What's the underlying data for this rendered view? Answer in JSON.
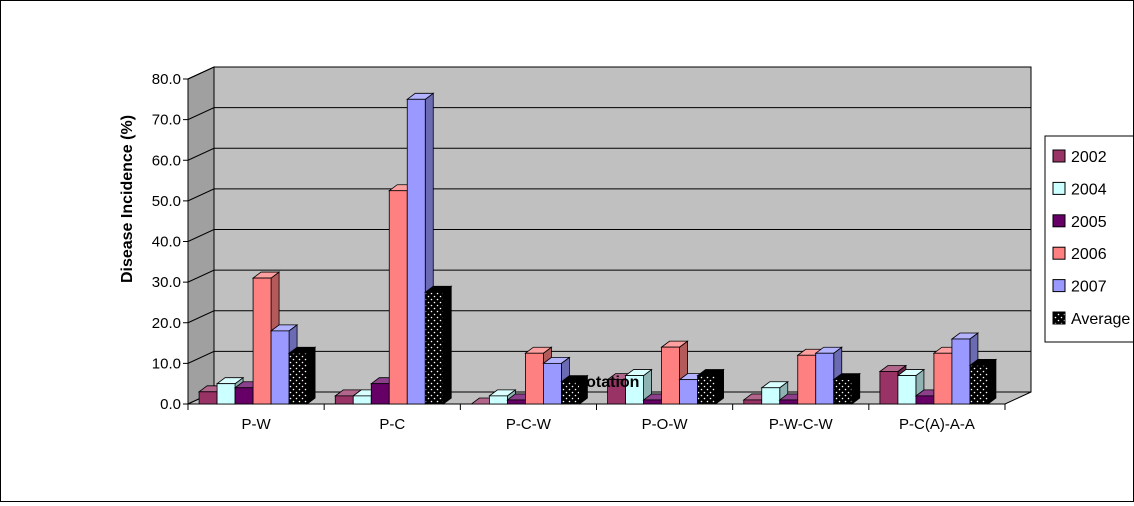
{
  "chart_data": {
    "type": "bar",
    "title": "",
    "xlabel": "Rotation",
    "ylabel": "Disease Incidence (%)",
    "ylim": [
      0,
      80
    ],
    "yticks": [
      "0.0",
      "10.0",
      "20.0",
      "30.0",
      "40.0",
      "50.0",
      "60.0",
      "70.0",
      "80.0"
    ],
    "categories": [
      "P-W",
      "P-C",
      "P-C-W",
      "P-O-W",
      "P-W-C-W",
      "P-C(A)-A-A"
    ],
    "grid": true,
    "legend_position": "right",
    "series": [
      {
        "name": "2002",
        "color": "#993366",
        "values": [
          3.0,
          2.0,
          0.0,
          6.0,
          1.0,
          8.0
        ]
      },
      {
        "name": "2004",
        "color": "#ccffff",
        "values": [
          5.0,
          2.0,
          2.0,
          7.0,
          4.0,
          7.0
        ]
      },
      {
        "name": "2005",
        "color": "#660066",
        "values": [
          4.0,
          5.0,
          1.0,
          1.0,
          1.0,
          2.0
        ]
      },
      {
        "name": "2006",
        "color": "#ff8080",
        "values": [
          31.0,
          52.5,
          12.5,
          14.0,
          12.0,
          12.5
        ]
      },
      {
        "name": "2007",
        "color": "#9999ff",
        "values": [
          18.0,
          75.0,
          10.0,
          6.0,
          12.5,
          16.0
        ]
      },
      {
        "name": "Average",
        "color": "#000000",
        "values": [
          12.5,
          27.5,
          5.5,
          7.0,
          6.0,
          9.5
        ]
      }
    ]
  }
}
